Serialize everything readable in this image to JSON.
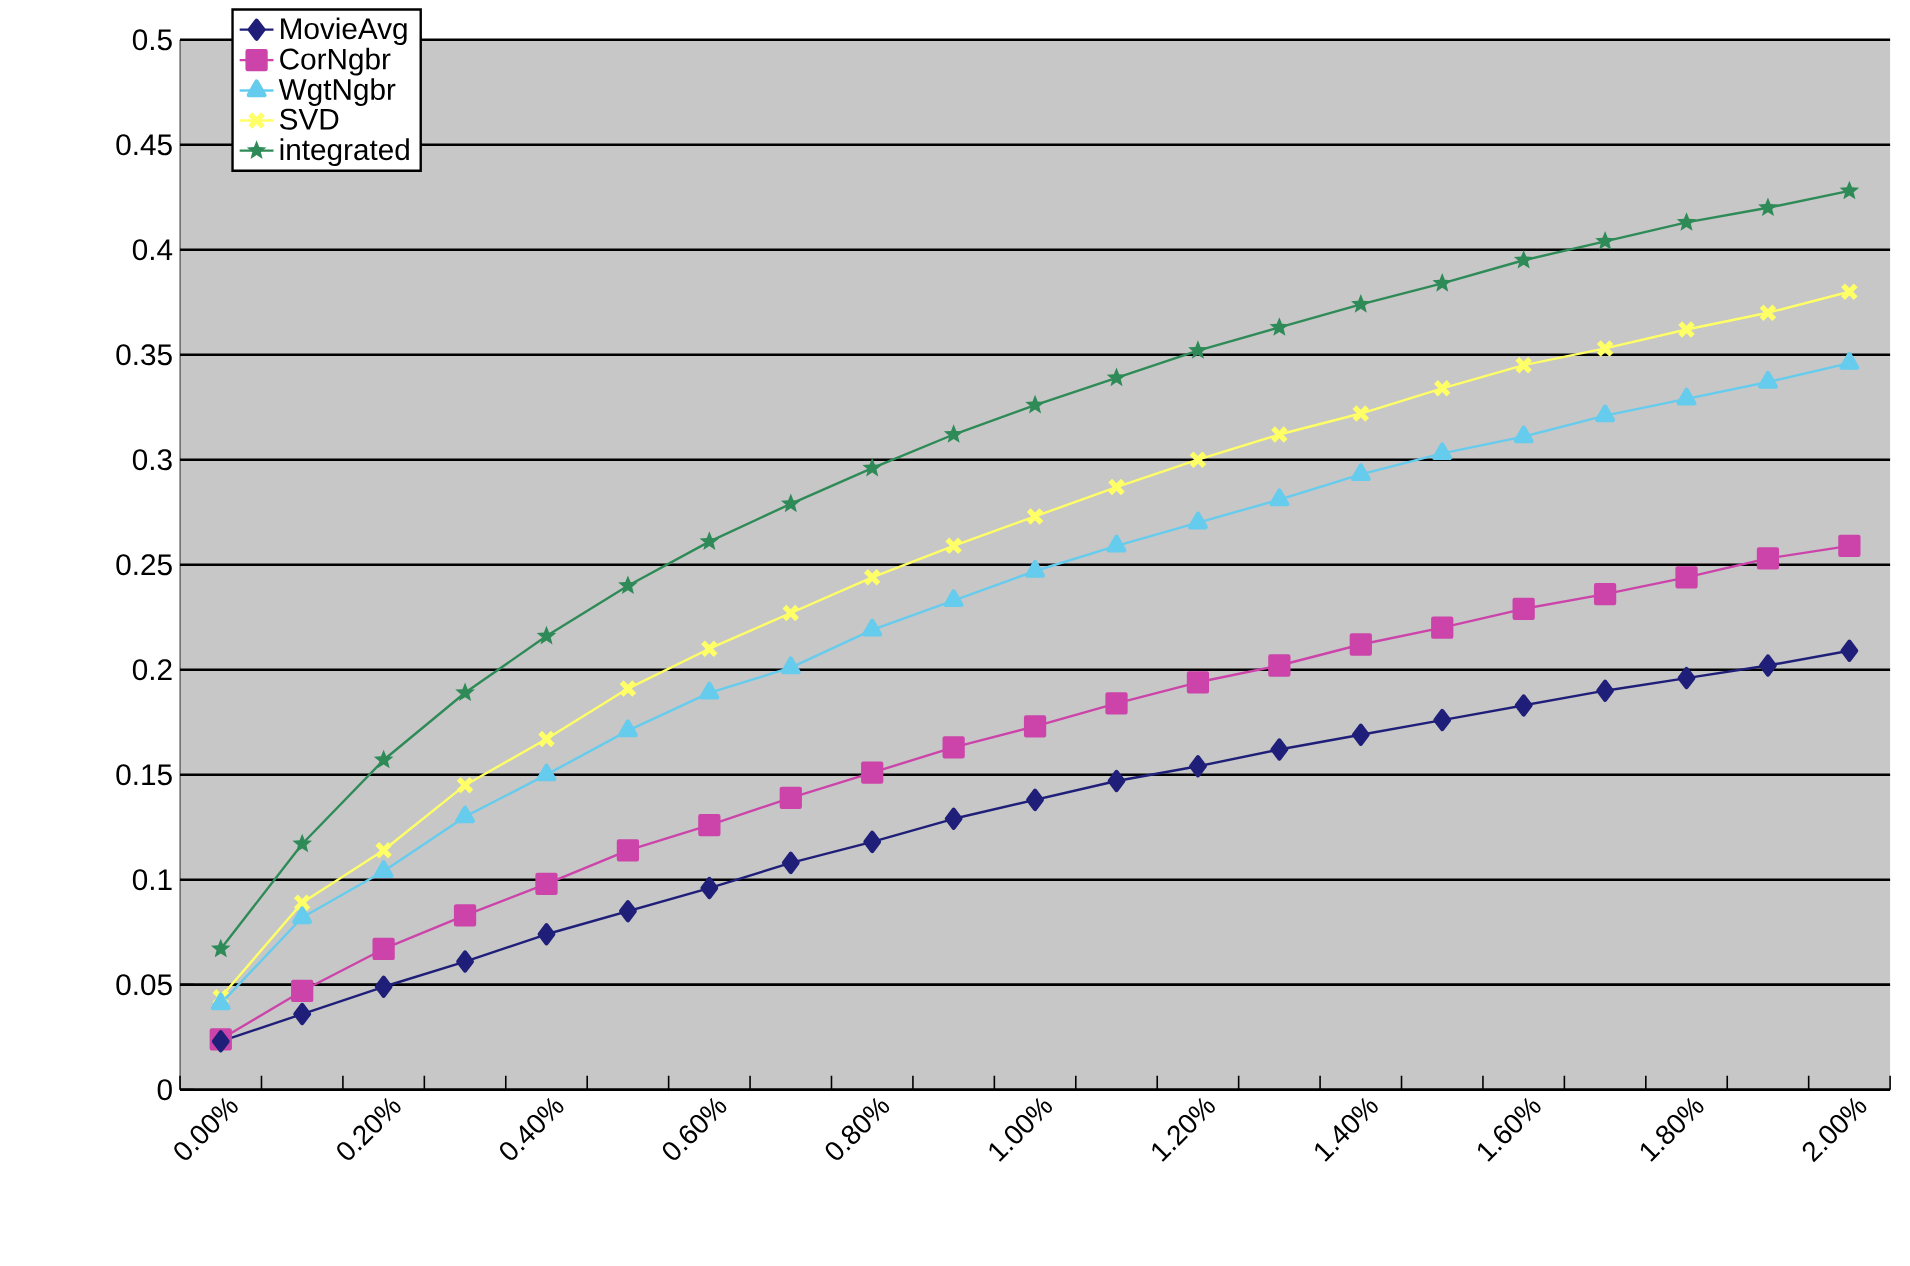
{
  "chart_data": {
    "type": "line",
    "categories": [
      "0.00%",
      null,
      "0.20%",
      null,
      "0.40%",
      null,
      "0.60%",
      null,
      "0.80%",
      null,
      "1.00%",
      null,
      "1.20%",
      null,
      "1.40%",
      null,
      "1.60%",
      null,
      "1.80%",
      null,
      "2.00%"
    ],
    "series": [
      {
        "name": "MovieAvg",
        "color": "#1f1f7a",
        "marker": "diamond",
        "values": [
          0.023,
          0.036,
          0.049,
          0.061,
          0.074,
          0.085,
          0.096,
          0.108,
          0.118,
          0.129,
          0.138,
          0.147,
          0.154,
          0.162,
          0.169,
          0.176,
          0.183,
          0.19,
          0.196,
          0.202,
          0.209
        ]
      },
      {
        "name": "CorNgbr",
        "color": "#cc44aa",
        "marker": "square",
        "values": [
          0.024,
          0.047,
          0.067,
          0.083,
          0.098,
          0.114,
          0.126,
          0.139,
          0.151,
          0.163,
          0.173,
          0.184,
          0.194,
          0.202,
          0.212,
          0.22,
          0.229,
          0.236,
          0.244,
          0.253,
          0.259
        ]
      },
      {
        "name": "WgtNgbr",
        "color": "#66ccee",
        "marker": "triangle",
        "values": [
          0.041,
          0.082,
          0.104,
          0.13,
          0.15,
          0.171,
          0.189,
          0.201,
          0.219,
          0.233,
          0.247,
          0.259,
          0.27,
          0.281,
          0.293,
          0.303,
          0.311,
          0.321,
          0.329,
          0.337,
          0.346
        ]
      },
      {
        "name": "SVD",
        "color": "#ffff66",
        "marker": "cross",
        "values": [
          0.044,
          0.089,
          0.114,
          0.145,
          0.167,
          0.191,
          0.21,
          0.227,
          0.244,
          0.259,
          0.273,
          0.287,
          0.3,
          0.312,
          0.322,
          0.334,
          0.345,
          0.353,
          0.362,
          0.37,
          0.38
        ]
      },
      {
        "name": "integrated",
        "color": "#2e8b57",
        "marker": "star",
        "values": [
          0.067,
          0.117,
          0.157,
          0.189,
          0.216,
          0.24,
          0.261,
          0.279,
          0.296,
          0.312,
          0.326,
          0.339,
          0.352,
          0.363,
          0.374,
          0.384,
          0.395,
          0.404,
          0.413,
          0.42,
          0.428
        ]
      }
    ],
    "ylim": [
      0,
      0.5
    ],
    "yticks": [
      0,
      0.05,
      0.1,
      0.15,
      0.2,
      0.25,
      0.3,
      0.35,
      0.4,
      0.45,
      0.5
    ],
    "grid": "y",
    "legend": "top left",
    "line_style": "solid"
  }
}
